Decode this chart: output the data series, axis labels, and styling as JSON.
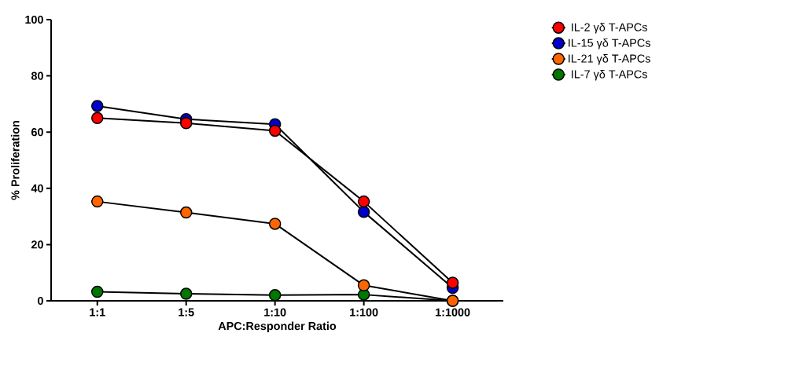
{
  "chart_data": {
    "type": "line",
    "xlabel": "APC:Responder Ratio",
    "ylabel": "% Proliferation",
    "categories": [
      "1:1",
      "1:5",
      "1:10",
      "1:100",
      "1:1000"
    ],
    "series": [
      {
        "name": "IL-2 γδ T-APCs",
        "color": "#ff0000",
        "values": [
          65.0,
          63.2,
          60.5,
          35.3,
          6.4
        ]
      },
      {
        "name": "IL-15 γδ T-APCs",
        "color": "#0000cc",
        "values": [
          69.3,
          64.6,
          62.8,
          31.6,
          4.6
        ]
      },
      {
        "name": "IL-21 γδ T-APCs",
        "color": "#ff6600",
        "values": [
          35.3,
          31.4,
          27.4,
          5.5,
          0
        ]
      },
      {
        "name": "IL-7 γδ T-APCs",
        "color": "#007700",
        "values": [
          3.2,
          2.5,
          2.0,
          2.2,
          0
        ]
      }
    ],
    "ylim": [
      0,
      100
    ],
    "yticks": [
      0,
      20,
      40,
      60,
      80,
      100
    ],
    "grid": false,
    "legend": "right",
    "marker": "circle",
    "line_style": "solid"
  }
}
